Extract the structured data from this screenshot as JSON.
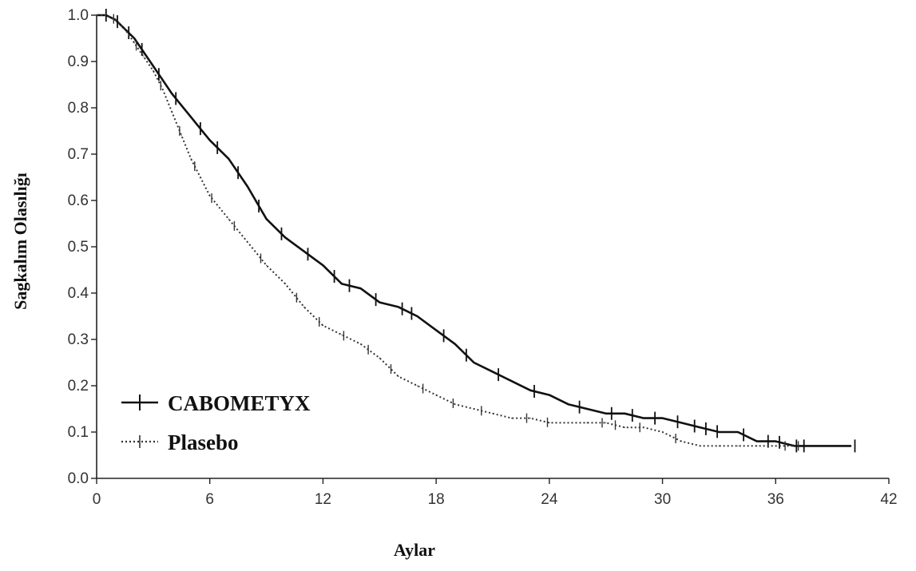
{
  "chart_data": {
    "type": "line",
    "xlabel": "Aylar",
    "ylabel": "Sagkalım Olasılığı",
    "xlim": [
      0,
      42
    ],
    "ylim": [
      0,
      1.0
    ],
    "x_ticks": [
      "0",
      "6",
      "12",
      "18",
      "24",
      "30",
      "36",
      "42"
    ],
    "y_ticks": [
      "0.0",
      "0.1",
      "0.2",
      "0.3",
      "0.4",
      "0.5",
      "0.6",
      "0.7",
      "0.8",
      "0.9",
      "1.0"
    ],
    "legend_position": "bottom-left",
    "grid": false,
    "series": [
      {
        "name": "CABOMETYX",
        "line_style": "solid",
        "color": "#111111",
        "x": [
          0,
          0.5,
          1,
          1.5,
          2,
          2.5,
          3,
          3.5,
          4,
          5,
          6,
          7,
          8,
          9,
          10,
          11,
          12,
          13,
          14,
          15,
          16,
          17,
          18,
          19,
          20,
          21,
          22,
          23,
          24,
          25,
          26,
          27,
          28,
          29,
          30,
          31,
          32,
          33,
          34,
          35,
          36,
          37,
          38,
          39,
          40
        ],
        "y": [
          1.0,
          1.0,
          0.99,
          0.97,
          0.95,
          0.92,
          0.89,
          0.86,
          0.83,
          0.78,
          0.73,
          0.69,
          0.63,
          0.56,
          0.52,
          0.49,
          0.46,
          0.42,
          0.41,
          0.38,
          0.37,
          0.35,
          0.32,
          0.29,
          0.25,
          0.23,
          0.21,
          0.19,
          0.18,
          0.16,
          0.15,
          0.14,
          0.14,
          0.13,
          0.13,
          0.12,
          0.11,
          0.1,
          0.1,
          0.08,
          0.08,
          0.07,
          0.07,
          0.07,
          0.07
        ],
        "censor_x": [
          0.5,
          1.1,
          1.7,
          2.4,
          3.3,
          4.2,
          5.5,
          6.4,
          7.5,
          8.6,
          9.8,
          11.2,
          12.6,
          13.4,
          14.8,
          16.2,
          16.7,
          18.4,
          19.6,
          21.3,
          23.2,
          25.6,
          27.3,
          28.4,
          29.6,
          30.8,
          31.7,
          32.3,
          32.9,
          34.3,
          35.6,
          36.2,
          37.1,
          37.5,
          40.2
        ]
      },
      {
        "name": "Plasebo",
        "line_style": "dotted",
        "color": "#333333",
        "x": [
          0,
          0.5,
          1,
          1.5,
          2,
          2.5,
          3,
          3.5,
          4,
          4.5,
          5,
          5.5,
          6,
          7,
          8,
          9,
          10,
          11,
          12,
          13,
          14,
          15,
          16,
          17,
          18,
          19,
          20,
          21,
          22,
          23,
          24,
          25,
          26,
          27,
          28,
          29,
          30,
          31,
          32,
          33,
          34,
          35,
          36,
          37
        ],
        "y": [
          1.0,
          1.0,
          0.99,
          0.97,
          0.94,
          0.91,
          0.88,
          0.84,
          0.79,
          0.74,
          0.69,
          0.65,
          0.61,
          0.56,
          0.51,
          0.46,
          0.42,
          0.37,
          0.33,
          0.31,
          0.29,
          0.26,
          0.22,
          0.2,
          0.18,
          0.16,
          0.15,
          0.14,
          0.13,
          0.13,
          0.12,
          0.12,
          0.12,
          0.12,
          0.11,
          0.11,
          0.1,
          0.08,
          0.07,
          0.07,
          0.07,
          0.07,
          0.07,
          0.07
        ],
        "censor_x": [
          0.9,
          2.1,
          3.4,
          4.4,
          5.2,
          6.1,
          7.3,
          8.7,
          10.6,
          11.8,
          13.1,
          14.4,
          15.6,
          17.3,
          18.9,
          20.4,
          22.8,
          23.9,
          26.8,
          27.5,
          28.8,
          30.7,
          36.5,
          37.2
        ]
      }
    ]
  }
}
